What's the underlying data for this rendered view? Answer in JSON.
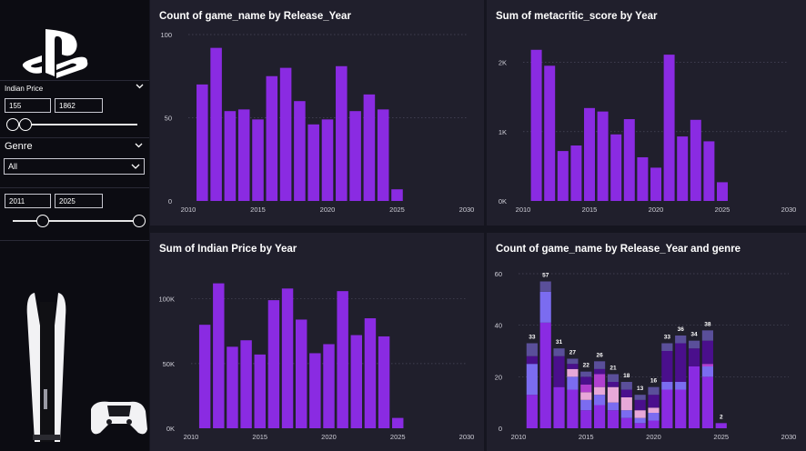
{
  "sidebar": {
    "price_filter": {
      "label": "Indian Price",
      "min": "155",
      "max": "1862",
      "slider_low": 0.0,
      "slider_high": 0.1
    },
    "genre_filter": {
      "label": "Genre",
      "selected": "All"
    },
    "year_filter": {
      "min": "2011",
      "max": "2025",
      "slider_low": 0.24,
      "slider_high": 1.0
    }
  },
  "colors": {
    "bar": "#8a2be2",
    "panel": "#201f2c",
    "sidebar": "#0c0c12"
  },
  "chart_data": [
    {
      "id": "c1",
      "type": "bar",
      "title": "Count of game_name by Release_Year",
      "x": [
        2011,
        2012,
        2013,
        2014,
        2015,
        2016,
        2017,
        2018,
        2019,
        2020,
        2021,
        2022,
        2023,
        2024,
        2025
      ],
      "values": [
        70,
        92,
        54,
        55,
        49,
        75,
        80,
        60,
        46,
        49,
        81,
        54,
        64,
        55,
        7
      ],
      "xlim": [
        2010,
        2030
      ],
      "xticks": [
        "2010",
        "2015",
        "2020",
        "2025",
        "2030"
      ],
      "ylim": [
        0,
        100
      ],
      "yticks": [
        {
          "v": 0,
          "label": "0"
        },
        {
          "v": 50,
          "label": "50"
        },
        {
          "v": 100,
          "label": "100"
        }
      ]
    },
    {
      "id": "c2",
      "type": "bar",
      "title": "Sum of metacritic_score by Year",
      "x": [
        2011,
        2012,
        2013,
        2014,
        2015,
        2016,
        2017,
        2018,
        2019,
        2020,
        2021,
        2022,
        2023,
        2024,
        2025
      ],
      "values": [
        2180,
        1950,
        720,
        800,
        1340,
        1290,
        960,
        1180,
        630,
        480,
        2110,
        930,
        1170,
        860,
        270
      ],
      "xlim": [
        2010,
        2030
      ],
      "xticks": [
        "2010",
        "2015",
        "2020",
        "2025",
        "2030"
      ],
      "ylim": [
        0,
        2400
      ],
      "yticks": [
        {
          "v": 0,
          "label": "0K"
        },
        {
          "v": 1000,
          "label": "1K"
        },
        {
          "v": 2000,
          "label": "2K"
        }
      ]
    },
    {
      "id": "c3",
      "type": "bar",
      "title": "Sum of Indian Price by Year",
      "x": [
        2011,
        2012,
        2013,
        2014,
        2015,
        2016,
        2017,
        2018,
        2019,
        2020,
        2021,
        2022,
        2023,
        2024,
        2025
      ],
      "values": [
        80000,
        112000,
        63000,
        68000,
        57000,
        99000,
        108000,
        84000,
        58000,
        65000,
        106000,
        72000,
        85000,
        71000,
        8000
      ],
      "xlim": [
        2010,
        2030
      ],
      "xticks": [
        "2010",
        "2015",
        "2020",
        "2025",
        "2030"
      ],
      "ylim": [
        0,
        130000
      ],
      "yticks": [
        {
          "v": 0,
          "label": "0K"
        },
        {
          "v": 50000,
          "label": "50K"
        },
        {
          "v": 100000,
          "label": "100K"
        }
      ]
    },
    {
      "id": "c4",
      "type": "bar",
      "stacked": true,
      "title": "Count of game_name by Release_Year and genre",
      "x": [
        2011,
        2012,
        2013,
        2014,
        2015,
        2016,
        2017,
        2018,
        2019,
        2020,
        2021,
        2022,
        2023,
        2024,
        2025
      ],
      "totals": [
        33,
        57,
        31,
        27,
        22,
        26,
        21,
        18,
        13,
        16,
        33,
        36,
        34,
        38,
        2
      ],
      "series": [
        {
          "color": "#8a2be2",
          "values": [
            13,
            41,
            16,
            15,
            7,
            9,
            7,
            4,
            2,
            3,
            15,
            15,
            24,
            20,
            2
          ]
        },
        {
          "color": "#7b6cf0",
          "values": [
            12,
            12,
            0,
            5,
            4,
            4,
            3,
            3,
            2,
            3,
            3,
            3,
            0,
            4,
            0
          ]
        },
        {
          "color": "#e8a8d8",
          "values": [
            0,
            0,
            0,
            3,
            3,
            3,
            6,
            5,
            3,
            2,
            0,
            0,
            0,
            0,
            0
          ]
        },
        {
          "color": "#b03fcf",
          "values": [
            0,
            0,
            0,
            0,
            3,
            5,
            0,
            0,
            0,
            0,
            0,
            0,
            0,
            1,
            0
          ]
        },
        {
          "color": "#4a0f8c",
          "values": [
            3,
            0,
            12,
            2,
            3,
            2,
            2,
            3,
            4,
            5,
            12,
            15,
            7,
            9,
            0
          ]
        },
        {
          "color": "#5a4f9a",
          "values": [
            5,
            4,
            3,
            2,
            2,
            3,
            3,
            3,
            2,
            3,
            3,
            3,
            3,
            4,
            0
          ]
        }
      ],
      "xlim": [
        2010,
        2030
      ],
      "xticks": [
        "2010",
        "2015",
        "2020",
        "2025",
        "2030"
      ],
      "ylim": [
        0,
        60
      ],
      "yticks": [
        {
          "v": 0,
          "label": "0"
        },
        {
          "v": 20,
          "label": "20"
        },
        {
          "v": 40,
          "label": "40"
        },
        {
          "v": 60,
          "label": "60"
        }
      ]
    }
  ]
}
